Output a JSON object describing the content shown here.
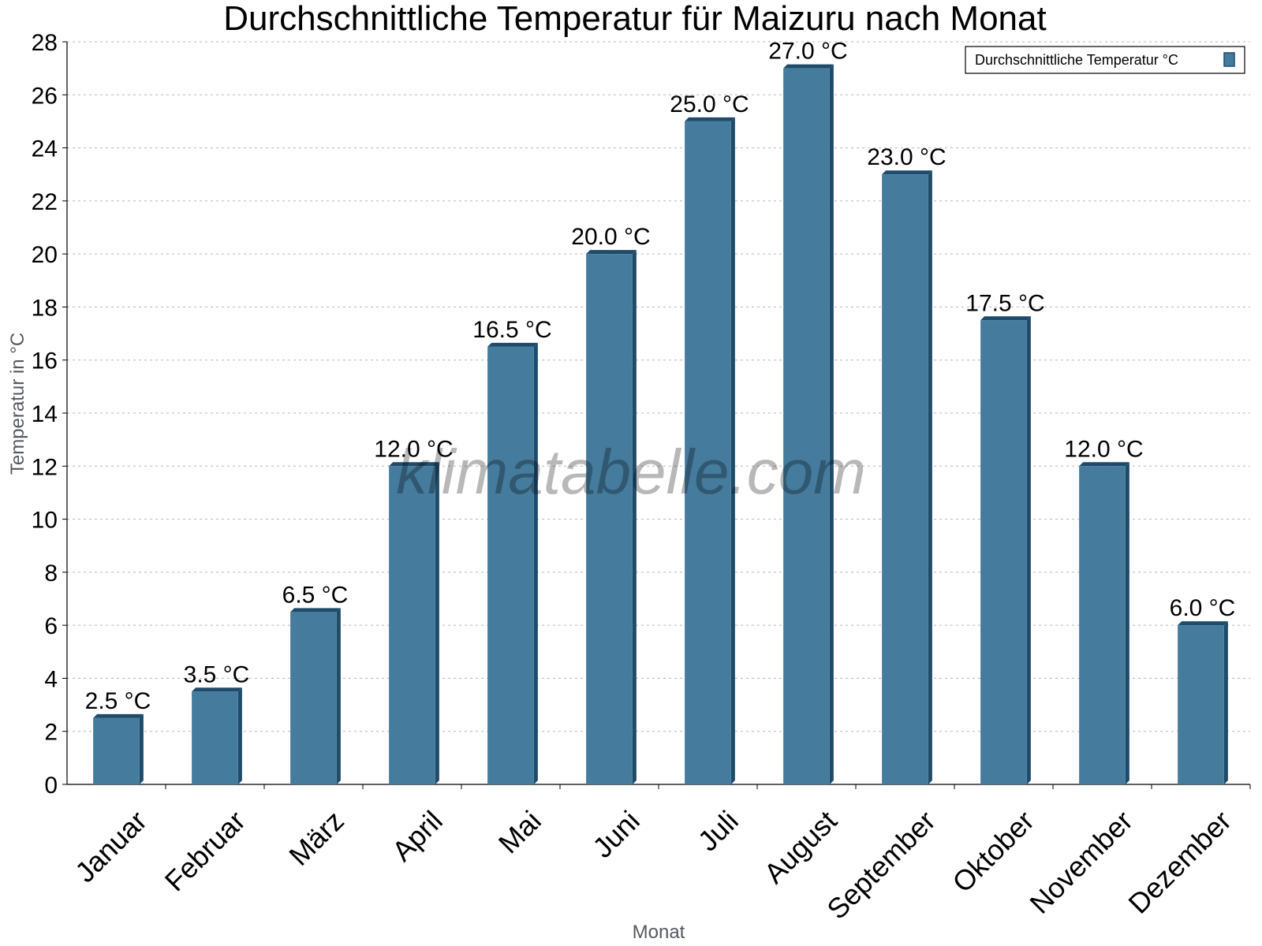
{
  "chart_data": {
    "type": "bar",
    "title": "Durchschnittliche Temperatur für Maizuru nach Monat",
    "xlabel": "Monat",
    "ylabel": "Temperatur in °C",
    "categories": [
      "Januar",
      "Februar",
      "März",
      "April",
      "Mai",
      "Juni",
      "Juli",
      "August",
      "September",
      "Oktober",
      "November",
      "Dezember"
    ],
    "series": [
      {
        "name": "Durchschnittliche Temperatur °C",
        "values": [
          2.5,
          3.5,
          6.5,
          12.0,
          16.5,
          20.0,
          25.0,
          27.0,
          23.0,
          17.5,
          12.0,
          6.0
        ],
        "color": "#457b9d"
      }
    ],
    "data_labels": [
      "2.5 °C",
      "3.5 °C",
      "6.5 °C",
      "12.0 °C",
      "16.5 °C",
      "20.0 °C",
      "25.0 °C",
      "27.0 °C",
      "23.0 °C",
      "17.5 °C",
      "12.0 °C",
      "6.0 °C"
    ],
    "ylim": [
      0,
      28
    ],
    "yticks": [
      0,
      2,
      4,
      6,
      8,
      10,
      12,
      14,
      16,
      18,
      20,
      22,
      24,
      26,
      28
    ],
    "grid": true,
    "legend_position": "top-right",
    "watermark": "klimatabelle.com"
  }
}
